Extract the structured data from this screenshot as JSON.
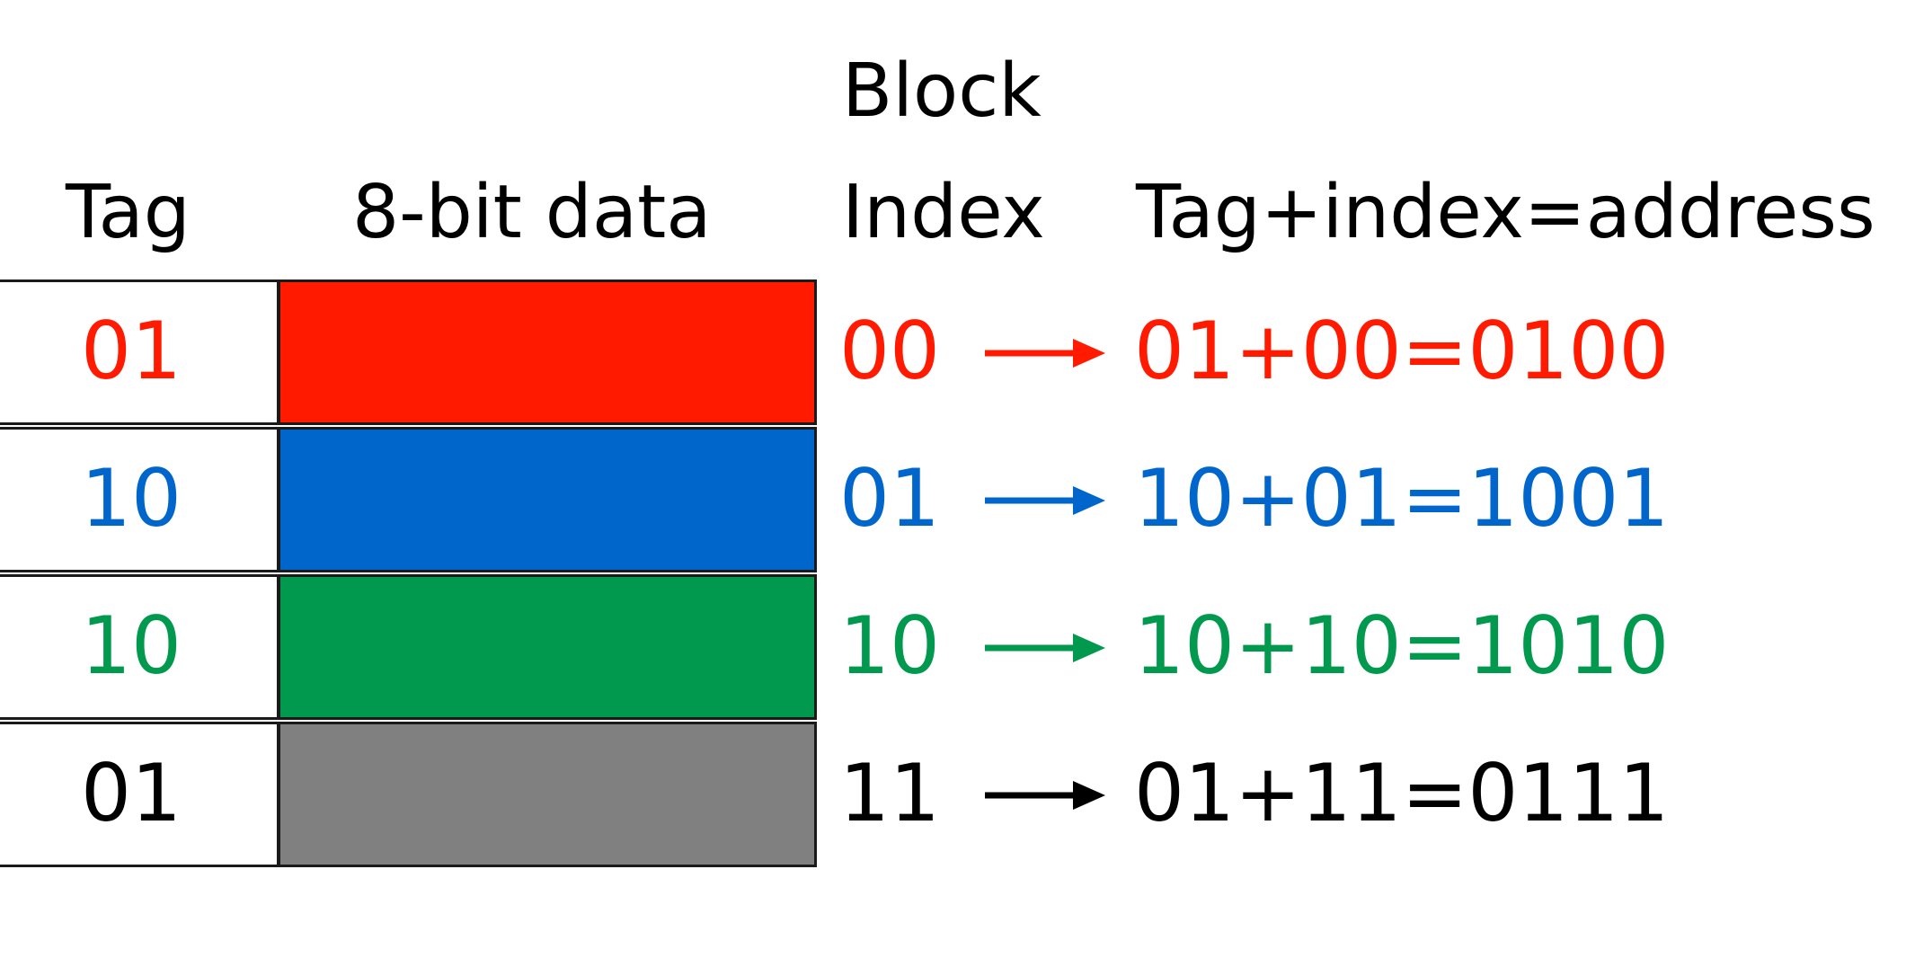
{
  "headers": {
    "tag": "Tag",
    "data": "8-bit data",
    "block_line1": "Block",
    "block_line2": "Index",
    "address": "Tag+index=address"
  },
  "colors": {
    "red": "#ff1a00",
    "blue": "#0066cc",
    "green": "#00994d",
    "gray": "#808080",
    "black": "#000000"
  },
  "rows": [
    {
      "tag": "01",
      "index": "00",
      "address": "01+00=0100",
      "text_color": "#ff1a00",
      "fill_color": "#ff1a00"
    },
    {
      "tag": "10",
      "index": "01",
      "address": "10+01=1001",
      "text_color": "#0066cc",
      "fill_color": "#0066cc"
    },
    {
      "tag": "10",
      "index": "10",
      "address": "10+10=1010",
      "text_color": "#00994d",
      "fill_color": "#00994d"
    },
    {
      "tag": "01",
      "index": "11",
      "address": "01+11=0111",
      "text_color": "#000000",
      "fill_color": "#808080"
    }
  ]
}
